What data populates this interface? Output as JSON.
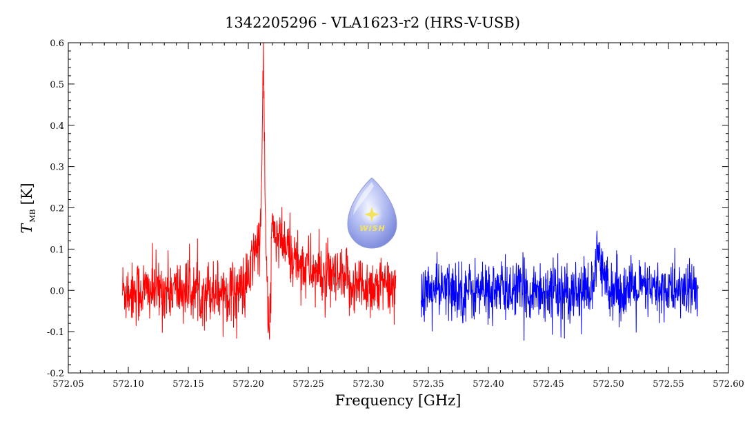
{
  "chart_data": {
    "type": "line",
    "title": "1342205296 - VLA1623-r2 (HRS-V-USB)",
    "xlabel": "Frequency [GHz]",
    "ylabel": {
      "symbol": "T",
      "subscript": "MB",
      "unit": "[K]"
    },
    "xlim": [
      572.05,
      572.6
    ],
    "ylim": [
      -0.2,
      0.6
    ],
    "x_ticks": [
      "572.05",
      "572.10",
      "572.15",
      "572.20",
      "572.25",
      "572.30",
      "572.35",
      "572.40",
      "572.45",
      "572.50",
      "572.55",
      "572.60"
    ],
    "y_ticks": [
      "-0.2",
      "-0.1",
      "0.0",
      "0.1",
      "0.2",
      "0.3",
      "0.4",
      "0.5",
      "0.6"
    ],
    "grid": false,
    "series": [
      {
        "color": "#ff0000",
        "x_range": [
          572.095,
          572.323
        ],
        "noise_sigma": 0.038,
        "features": [
          {
            "kind": "gaussian",
            "center": 572.2125,
            "amplitude": 0.46,
            "width": 0.0012
          },
          {
            "kind": "gaussian",
            "center": 572.207,
            "amplitude": 0.11,
            "width": 0.004
          },
          {
            "kind": "gaussian",
            "center": 572.2175,
            "amplitude": -0.1,
            "width": 0.0008
          },
          {
            "kind": "decaying_wing",
            "start": 572.219,
            "amplitude": 0.15,
            "scale": 0.03
          }
        ],
        "samples": [
          [
            572.095,
            -0.08
          ],
          [
            572.096,
            0.08
          ],
          [
            572.1,
            0.04
          ],
          [
            572.105,
            -0.03
          ],
          [
            572.11,
            0.0
          ],
          [
            572.12,
            -0.02
          ],
          [
            572.13,
            0.0
          ],
          [
            572.14,
            -0.06
          ],
          [
            572.15,
            -0.03
          ],
          [
            572.151,
            -0.12
          ],
          [
            572.16,
            0.0
          ],
          [
            572.17,
            0.02
          ],
          [
            572.18,
            -0.02
          ],
          [
            572.19,
            0.0
          ],
          [
            572.2,
            0.02
          ],
          [
            572.205,
            0.05
          ],
          [
            572.21,
            0.18
          ],
          [
            572.2125,
            0.53
          ],
          [
            572.214,
            0.2
          ],
          [
            572.2165,
            0.05
          ],
          [
            572.2175,
            -0.12
          ],
          [
            572.219,
            0.04
          ],
          [
            572.22,
            0.22
          ],
          [
            572.225,
            0.15
          ],
          [
            572.23,
            0.1
          ],
          [
            572.24,
            0.08
          ],
          [
            572.25,
            0.05
          ],
          [
            572.26,
            0.02
          ],
          [
            572.27,
            0.0
          ],
          [
            572.28,
            -0.01
          ],
          [
            572.29,
            0.0
          ],
          [
            572.3,
            -0.01
          ],
          [
            572.31,
            0.0
          ],
          [
            572.323,
            -0.01
          ]
        ]
      },
      {
        "color": "#0000ff",
        "x_range": [
          572.344,
          572.575
        ],
        "noise_sigma": 0.036,
        "features": [
          {
            "kind": "gaussian",
            "center": 572.4915,
            "amplitude": 0.09,
            "width": 0.0015
          },
          {
            "kind": "gaussian",
            "center": 572.497,
            "amplitude": 0.03,
            "width": 0.004
          }
        ],
        "samples": [
          [
            572.344,
            -0.01
          ],
          [
            572.35,
            0.0
          ],
          [
            572.36,
            -0.02
          ],
          [
            572.37,
            0.02
          ],
          [
            572.38,
            -0.03
          ],
          [
            572.39,
            0.0
          ],
          [
            572.4,
            0.02
          ],
          [
            572.41,
            -0.02
          ],
          [
            572.42,
            0.0
          ],
          [
            572.43,
            -0.02
          ],
          [
            572.44,
            0.0
          ],
          [
            572.45,
            0.01
          ],
          [
            572.46,
            -0.02
          ],
          [
            572.47,
            0.0
          ],
          [
            572.48,
            0.0
          ],
          [
            572.49,
            0.07
          ],
          [
            572.4915,
            0.12
          ],
          [
            572.495,
            0.04
          ],
          [
            572.5,
            0.02
          ],
          [
            572.51,
            0.0
          ],
          [
            572.52,
            -0.02
          ],
          [
            572.53,
            0.0
          ],
          [
            572.54,
            -0.01
          ],
          [
            572.55,
            0.0
          ],
          [
            572.56,
            -0.02
          ],
          [
            572.575,
            0.0
          ]
        ]
      }
    ]
  },
  "logo": {
    "text": "WISH",
    "colors": {
      "drop_light": "#eef1ff",
      "drop_mid": "#aab5ef",
      "drop_dark": "#6f7fd6",
      "star": "#f4e35c"
    }
  },
  "frame_color": "#000000"
}
